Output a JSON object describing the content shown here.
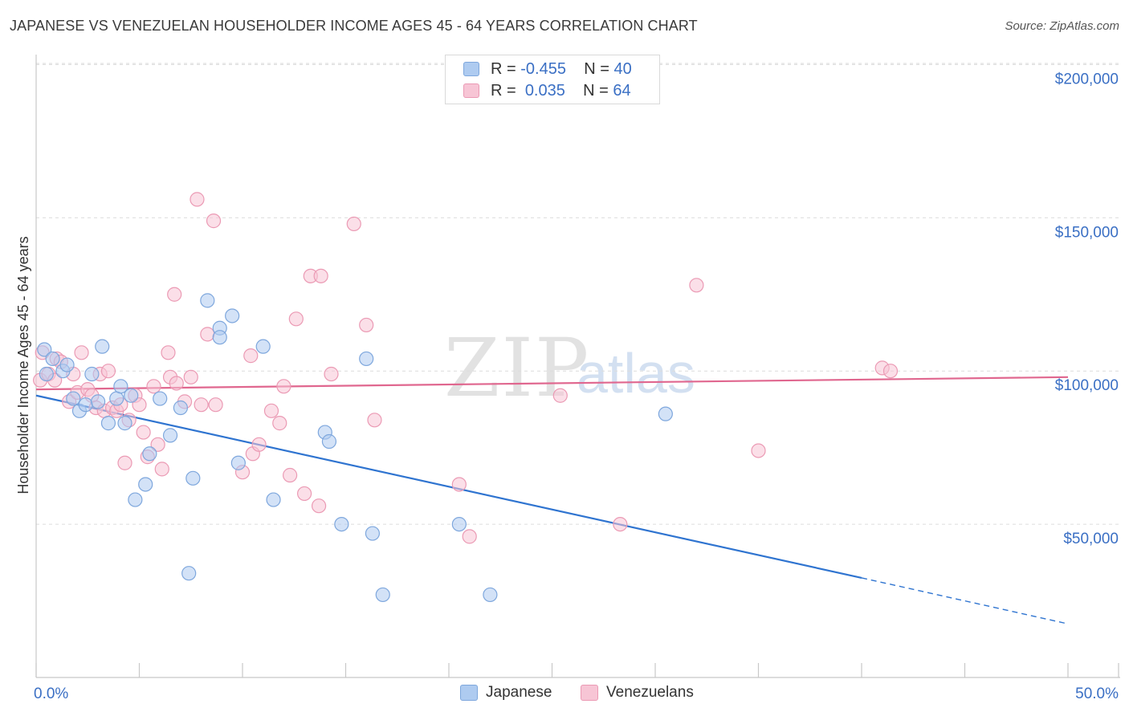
{
  "title": "JAPANESE VS VENEZUELAN HOUSEHOLDER INCOME AGES 45 - 64 YEARS CORRELATION CHART",
  "source": "Source: ZipAtlas.com",
  "watermark": {
    "part1": "ZIP",
    "part2": "atlas"
  },
  "colors": {
    "japanese_fill": "#aecbf0",
    "japanese_stroke": "#7ea7dd",
    "japanese_line": "#2f74d0",
    "venezuelan_fill": "#f7c5d5",
    "venezuelan_stroke": "#eb9ab4",
    "venezuelan_line": "#e0678f",
    "axis_label": "#3a6fc4",
    "grid": "#dcdcdc"
  },
  "legend": {
    "r_label": "R =",
    "n_label": "N =",
    "rows": [
      {
        "series": "Japanese",
        "r": "-0.455",
        "n": "40"
      },
      {
        "series": "Venezuelans",
        "r": "0.035",
        "n": "64"
      }
    ]
  },
  "bottom_legend": [
    "Japanese",
    "Venezuelans"
  ],
  "chart_data": {
    "type": "scatter",
    "title": "JAPANESE VS VENEZUELAN HOUSEHOLDER INCOME AGES 45 - 64 YEARS CORRELATION CHART",
    "xlabel": "",
    "ylabel": "Householder Income Ages 45 - 64 years",
    "xlim": [
      0,
      50
    ],
    "ylim": [
      0,
      205000
    ],
    "x_tick_labels": [
      "0.0%",
      "50.0%"
    ],
    "y_ticks": [
      50000,
      100000,
      150000,
      200000
    ],
    "y_tick_labels": [
      "$50,000",
      "$100,000",
      "$150,000",
      "$200,000"
    ],
    "grid": true,
    "legend_position": "top-center",
    "series": [
      {
        "name": "Japanese",
        "r": -0.455,
        "n": 40,
        "trend": {
          "x": [
            0.0,
            40.0
          ],
          "y": [
            92000,
            32500
          ],
          "dashed_to": [
            50.0,
            17500
          ]
        },
        "points": [
          [
            0.4,
            107000
          ],
          [
            0.8,
            104000
          ],
          [
            0.5,
            99000
          ],
          [
            1.3,
            100000
          ],
          [
            1.5,
            102000
          ],
          [
            1.8,
            91000
          ],
          [
            2.1,
            87000
          ],
          [
            2.4,
            89000
          ],
          [
            2.7,
            99000
          ],
          [
            3.0,
            90000
          ],
          [
            3.2,
            108000
          ],
          [
            3.5,
            83000
          ],
          [
            3.9,
            91000
          ],
          [
            4.1,
            95000
          ],
          [
            4.3,
            83000
          ],
          [
            4.6,
            92000
          ],
          [
            4.8,
            58000
          ],
          [
            5.3,
            63000
          ],
          [
            5.5,
            73000
          ],
          [
            6.0,
            91000
          ],
          [
            6.5,
            79000
          ],
          [
            7.0,
            88000
          ],
          [
            7.4,
            34000
          ],
          [
            7.6,
            65000
          ],
          [
            8.3,
            123000
          ],
          [
            8.9,
            114000
          ],
          [
            8.9,
            111000
          ],
          [
            9.5,
            118000
          ],
          [
            9.8,
            70000
          ],
          [
            11.0,
            108000
          ],
          [
            11.5,
            58000
          ],
          [
            14.0,
            80000
          ],
          [
            14.2,
            77000
          ],
          [
            14.8,
            50000
          ],
          [
            16.0,
            104000
          ],
          [
            16.3,
            47000
          ],
          [
            16.8,
            27000
          ],
          [
            20.5,
            50000
          ],
          [
            22.0,
            27000
          ],
          [
            30.5,
            86000
          ]
        ]
      },
      {
        "name": "Venezuelans",
        "r": 0.035,
        "n": 64,
        "trend": {
          "x": [
            0.0,
            50.0
          ],
          "y": [
            94000,
            98000
          ]
        },
        "points": [
          [
            0.2,
            97000
          ],
          [
            0.3,
            106000
          ],
          [
            0.6,
            99000
          ],
          [
            0.9,
            97000
          ],
          [
            1.0,
            104000
          ],
          [
            1.2,
            103000
          ],
          [
            1.6,
            90000
          ],
          [
            1.8,
            99000
          ],
          [
            2.0,
            93000
          ],
          [
            2.2,
            106000
          ],
          [
            2.5,
            94000
          ],
          [
            2.7,
            92000
          ],
          [
            2.9,
            88000
          ],
          [
            3.1,
            99000
          ],
          [
            3.3,
            87000
          ],
          [
            3.5,
            100000
          ],
          [
            3.7,
            88000
          ],
          [
            3.9,
            87000
          ],
          [
            4.1,
            89000
          ],
          [
            4.3,
            70000
          ],
          [
            4.5,
            84000
          ],
          [
            4.8,
            92000
          ],
          [
            5.0,
            89000
          ],
          [
            5.2,
            80000
          ],
          [
            5.4,
            72000
          ],
          [
            5.7,
            95000
          ],
          [
            5.9,
            76000
          ],
          [
            6.1,
            68000
          ],
          [
            6.4,
            106000
          ],
          [
            6.5,
            98000
          ],
          [
            6.7,
            125000
          ],
          [
            6.8,
            96000
          ],
          [
            7.2,
            90000
          ],
          [
            7.5,
            98000
          ],
          [
            7.8,
            156000
          ],
          [
            8.0,
            89000
          ],
          [
            8.3,
            112000
          ],
          [
            8.6,
            149000
          ],
          [
            8.7,
            89000
          ],
          [
            10.0,
            67000
          ],
          [
            10.4,
            105000
          ],
          [
            10.5,
            73000
          ],
          [
            10.8,
            76000
          ],
          [
            11.4,
            87000
          ],
          [
            11.8,
            83000
          ],
          [
            12.0,
            95000
          ],
          [
            12.3,
            66000
          ],
          [
            12.6,
            117000
          ],
          [
            13.0,
            60000
          ],
          [
            13.3,
            131000
          ],
          [
            13.7,
            56000
          ],
          [
            13.8,
            131000
          ],
          [
            14.3,
            99000
          ],
          [
            15.4,
            148000
          ],
          [
            16.0,
            115000
          ],
          [
            16.4,
            84000
          ],
          [
            20.5,
            63000
          ],
          [
            21.0,
            46000
          ],
          [
            25.4,
            92000
          ],
          [
            28.3,
            50000
          ],
          [
            32.0,
            128000
          ],
          [
            35.0,
            74000
          ],
          [
            41.0,
            101000
          ],
          [
            41.4,
            100000
          ]
        ]
      }
    ]
  }
}
